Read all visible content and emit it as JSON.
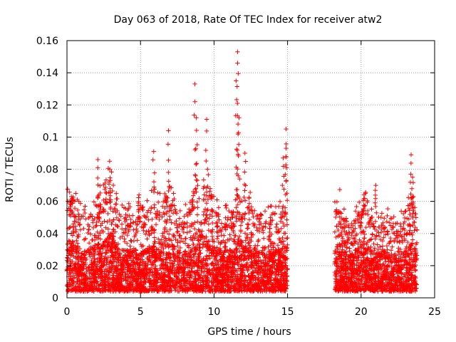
{
  "chart_data": {
    "type": "scatter",
    "title": "Day 063 of 2018, Rate Of TEC Index for receiver atw2",
    "xlabel": "GPS time / hours",
    "ylabel": "ROTI / TECUs",
    "xlim": [
      0,
      25
    ],
    "ylim": [
      0,
      0.16
    ],
    "x_ticks": [
      0,
      5,
      10,
      15,
      20,
      25
    ],
    "y_ticks": [
      0,
      0.02,
      0.04,
      0.06,
      0.08,
      0.1,
      0.12,
      0.14,
      0.16
    ],
    "x_tick_labels": [
      "0",
      "5",
      "10",
      "15",
      "20",
      "25"
    ],
    "y_tick_labels": [
      "0",
      "0.02",
      "0.04",
      "0.06",
      "0.08",
      "0.1",
      "0.12",
      "0.14",
      "0.16"
    ],
    "grid": true,
    "marker": "+",
    "marker_color": "#ff0000",
    "data_gap_hours": [
      15.0,
      18.2
    ],
    "notable_peaks": [
      {
        "x": 0.3,
        "y": 0.063
      },
      {
        "x": 2.1,
        "y": 0.086
      },
      {
        "x": 2.9,
        "y": 0.085
      },
      {
        "x": 4.9,
        "y": 0.064
      },
      {
        "x": 5.9,
        "y": 0.091
      },
      {
        "x": 6.9,
        "y": 0.104
      },
      {
        "x": 8.7,
        "y": 0.133
      },
      {
        "x": 8.8,
        "y": 0.112
      },
      {
        "x": 9.5,
        "y": 0.111
      },
      {
        "x": 11.6,
        "y": 0.153
      },
      {
        "x": 11.6,
        "y": 0.146
      },
      {
        "x": 11.5,
        "y": 0.135
      },
      {
        "x": 11.7,
        "y": 0.112
      },
      {
        "x": 12.1,
        "y": 0.09
      },
      {
        "x": 14.7,
        "y": 0.087
      },
      {
        "x": 14.9,
        "y": 0.105
      },
      {
        "x": 14.9,
        "y": 0.093
      },
      {
        "x": 20.2,
        "y": 0.064
      },
      {
        "x": 21.0,
        "y": 0.07
      },
      {
        "x": 23.4,
        "y": 0.089
      },
      {
        "x": 23.5,
        "y": 0.075
      }
    ],
    "segments": [
      {
        "x_start": 0.0,
        "x_end": 15.0,
        "typical_max": 0.05,
        "typical_min": 0.004
      },
      {
        "x_start": 18.2,
        "x_end": 23.8,
        "typical_max": 0.045,
        "typical_min": 0.004
      }
    ]
  }
}
